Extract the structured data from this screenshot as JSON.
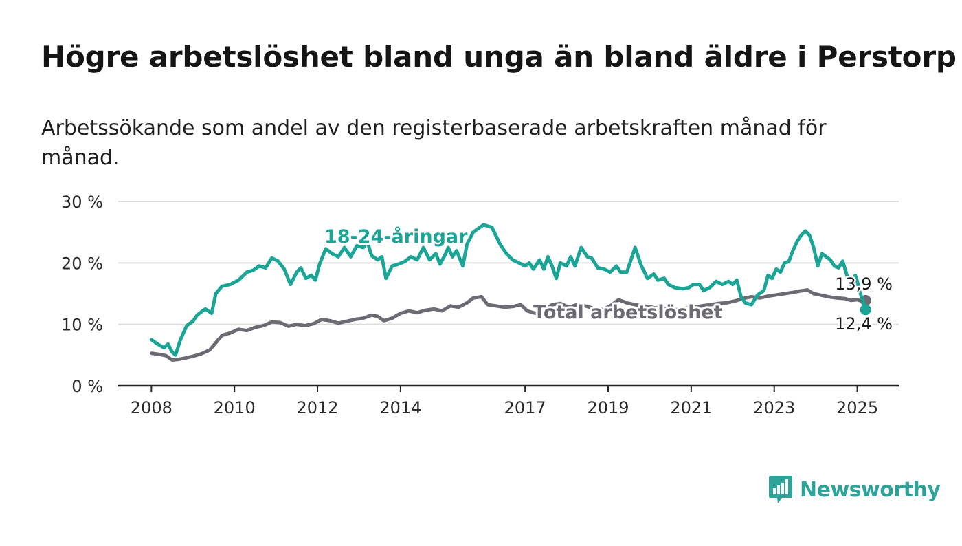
{
  "title": "Högre arbetslöshet bland unga än bland äldre i Perstorp",
  "subtitle": "Arbetssökande som andel av den registerbaserade arbetskraften månad för månad.",
  "logo": {
    "text": "Newsworthy",
    "icon": "bar-chart-speech-bubble-icon",
    "color": "#2ea39a"
  },
  "chart_data": {
    "type": "line",
    "ylim": [
      0,
      30
    ],
    "yticks": [
      0,
      10,
      20,
      30
    ],
    "ytick_labels": [
      "0 %",
      "10 %",
      "20 %",
      "30 %"
    ],
    "xlim": [
      2007.2,
      2026.0
    ],
    "xticks": [
      2008,
      2010,
      2012,
      2014,
      2017,
      2019,
      2021,
      2023,
      2025
    ],
    "xtick_labels": [
      "2008",
      "2010",
      "2012",
      "2014",
      "2017",
      "2019",
      "2021",
      "2023",
      "2025"
    ],
    "grid": true,
    "series": [
      {
        "name": "18-24-åringar",
        "color": "#1aa597",
        "end_label": "12,4 %",
        "points": [
          [
            2008.0,
            7.5
          ],
          [
            2008.15,
            6.8
          ],
          [
            2008.3,
            6.2
          ],
          [
            2008.4,
            6.8
          ],
          [
            2008.5,
            5.5
          ],
          [
            2008.58,
            5.0
          ],
          [
            2008.7,
            7.5
          ],
          [
            2008.85,
            9.8
          ],
          [
            2009.0,
            10.5
          ],
          [
            2009.1,
            11.5
          ],
          [
            2009.3,
            12.5
          ],
          [
            2009.45,
            11.8
          ],
          [
            2009.55,
            15.0
          ],
          [
            2009.7,
            16.2
          ],
          [
            2009.9,
            16.5
          ],
          [
            2010.1,
            17.2
          ],
          [
            2010.3,
            18.5
          ],
          [
            2010.45,
            18.8
          ],
          [
            2010.6,
            19.5
          ],
          [
            2010.75,
            19.2
          ],
          [
            2010.9,
            20.8
          ],
          [
            2011.05,
            20.3
          ],
          [
            2011.2,
            19.0
          ],
          [
            2011.35,
            16.5
          ],
          [
            2011.5,
            18.5
          ],
          [
            2011.6,
            19.2
          ],
          [
            2011.72,
            17.5
          ],
          [
            2011.85,
            18.0
          ],
          [
            2011.95,
            17.2
          ],
          [
            2012.05,
            19.8
          ],
          [
            2012.2,
            22.3
          ],
          [
            2012.35,
            21.5
          ],
          [
            2012.5,
            21.0
          ],
          [
            2012.65,
            22.5
          ],
          [
            2012.8,
            21.0
          ],
          [
            2012.95,
            22.8
          ],
          [
            2013.1,
            22.5
          ],
          [
            2013.2,
            23.5
          ],
          [
            2013.3,
            21.2
          ],
          [
            2013.45,
            20.5
          ],
          [
            2013.55,
            21.0
          ],
          [
            2013.65,
            17.5
          ],
          [
            2013.8,
            19.5
          ],
          [
            2013.95,
            19.8
          ],
          [
            2014.1,
            20.2
          ],
          [
            2014.25,
            21.0
          ],
          [
            2014.4,
            20.5
          ],
          [
            2014.55,
            22.5
          ],
          [
            2014.7,
            20.5
          ],
          [
            2014.85,
            21.5
          ],
          [
            2014.95,
            19.8
          ],
          [
            2015.05,
            21.0
          ],
          [
            2015.15,
            22.5
          ],
          [
            2015.25,
            21.0
          ],
          [
            2015.35,
            22.0
          ],
          [
            2015.5,
            19.5
          ],
          [
            2015.6,
            23.0
          ],
          [
            2015.75,
            25.0
          ],
          [
            2016.0,
            26.2
          ],
          [
            2016.2,
            25.8
          ],
          [
            2016.4,
            23.0
          ],
          [
            2016.55,
            21.5
          ],
          [
            2016.7,
            20.5
          ],
          [
            2016.85,
            20.0
          ],
          [
            2017.0,
            19.5
          ],
          [
            2017.1,
            20.0
          ],
          [
            2017.2,
            19.0
          ],
          [
            2017.35,
            20.5
          ],
          [
            2017.45,
            19.0
          ],
          [
            2017.55,
            21.0
          ],
          [
            2017.65,
            19.5
          ],
          [
            2017.75,
            17.5
          ],
          [
            2017.85,
            20.0
          ],
          [
            2018.0,
            19.5
          ],
          [
            2018.1,
            21.0
          ],
          [
            2018.2,
            19.5
          ],
          [
            2018.35,
            22.5
          ],
          [
            2018.5,
            21.0
          ],
          [
            2018.6,
            20.8
          ],
          [
            2018.75,
            19.2
          ],
          [
            2018.9,
            19.0
          ],
          [
            2019.05,
            18.5
          ],
          [
            2019.2,
            19.5
          ],
          [
            2019.3,
            18.5
          ],
          [
            2019.45,
            18.5
          ],
          [
            2019.65,
            22.5
          ],
          [
            2019.8,
            19.5
          ],
          [
            2019.95,
            17.5
          ],
          [
            2020.1,
            18.2
          ],
          [
            2020.2,
            17.2
          ],
          [
            2020.35,
            17.5
          ],
          [
            2020.45,
            16.5
          ],
          [
            2020.6,
            16.0
          ],
          [
            2020.8,
            15.8
          ],
          [
            2020.95,
            16.0
          ],
          [
            2021.05,
            16.5
          ],
          [
            2021.2,
            16.5
          ],
          [
            2021.3,
            15.5
          ],
          [
            2021.45,
            16.0
          ],
          [
            2021.6,
            17.0
          ],
          [
            2021.75,
            16.5
          ],
          [
            2021.9,
            17.0
          ],
          [
            2022.0,
            16.5
          ],
          [
            2022.1,
            17.2
          ],
          [
            2022.2,
            14.5
          ],
          [
            2022.3,
            13.5
          ],
          [
            2022.45,
            13.2
          ],
          [
            2022.6,
            14.8
          ],
          [
            2022.75,
            15.5
          ],
          [
            2022.85,
            18.0
          ],
          [
            2022.95,
            17.5
          ],
          [
            2023.05,
            19.0
          ],
          [
            2023.15,
            18.5
          ],
          [
            2023.25,
            20.0
          ],
          [
            2023.35,
            20.2
          ],
          [
            2023.45,
            22.0
          ],
          [
            2023.55,
            23.5
          ],
          [
            2023.65,
            24.5
          ],
          [
            2023.75,
            25.2
          ],
          [
            2023.85,
            24.5
          ],
          [
            2023.95,
            22.5
          ],
          [
            2024.05,
            19.5
          ],
          [
            2024.15,
            21.5
          ],
          [
            2024.25,
            21.0
          ],
          [
            2024.35,
            20.5
          ],
          [
            2024.45,
            19.5
          ],
          [
            2024.55,
            19.2
          ],
          [
            2024.65,
            20.3
          ],
          [
            2024.75,
            18.0
          ],
          [
            2024.85,
            16.5
          ],
          [
            2024.95,
            18.0
          ],
          [
            2025.0,
            17.0
          ],
          [
            2025.05,
            15.5
          ],
          [
            2025.1,
            14.5
          ],
          [
            2025.2,
            12.4
          ]
        ]
      },
      {
        "name": "Total arbetslöshet",
        "color": "#6b6b73",
        "end_label": "13,9 %",
        "points": [
          [
            2008.0,
            5.3
          ],
          [
            2008.2,
            5.1
          ],
          [
            2008.35,
            4.9
          ],
          [
            2008.5,
            4.2
          ],
          [
            2008.65,
            4.3
          ],
          [
            2008.8,
            4.5
          ],
          [
            2009.0,
            4.8
          ],
          [
            2009.2,
            5.2
          ],
          [
            2009.4,
            5.8
          ],
          [
            2009.55,
            7.0
          ],
          [
            2009.7,
            8.2
          ],
          [
            2009.9,
            8.6
          ],
          [
            2010.1,
            9.2
          ],
          [
            2010.3,
            9.0
          ],
          [
            2010.5,
            9.5
          ],
          [
            2010.7,
            9.8
          ],
          [
            2010.9,
            10.4
          ],
          [
            2011.1,
            10.3
          ],
          [
            2011.3,
            9.7
          ],
          [
            2011.5,
            10.0
          ],
          [
            2011.7,
            9.8
          ],
          [
            2011.9,
            10.1
          ],
          [
            2012.1,
            10.8
          ],
          [
            2012.3,
            10.6
          ],
          [
            2012.5,
            10.2
          ],
          [
            2012.7,
            10.5
          ],
          [
            2012.9,
            10.8
          ],
          [
            2013.1,
            11.0
          ],
          [
            2013.3,
            11.5
          ],
          [
            2013.45,
            11.3
          ],
          [
            2013.6,
            10.6
          ],
          [
            2013.8,
            11.0
          ],
          [
            2014.0,
            11.8
          ],
          [
            2014.2,
            12.2
          ],
          [
            2014.4,
            11.9
          ],
          [
            2014.6,
            12.3
          ],
          [
            2014.8,
            12.5
          ],
          [
            2015.0,
            12.2
          ],
          [
            2015.2,
            13.0
          ],
          [
            2015.4,
            12.8
          ],
          [
            2015.6,
            13.5
          ],
          [
            2015.75,
            14.3
          ],
          [
            2015.95,
            14.5
          ],
          [
            2016.1,
            13.2
          ],
          [
            2016.3,
            13.0
          ],
          [
            2016.5,
            12.8
          ],
          [
            2016.7,
            12.9
          ],
          [
            2016.9,
            13.2
          ],
          [
            2017.05,
            12.2
          ],
          [
            2017.25,
            11.8
          ],
          [
            2017.45,
            12.3
          ],
          [
            2017.65,
            13.2
          ],
          [
            2017.85,
            13.4
          ],
          [
            2018.05,
            12.8
          ],
          [
            2018.25,
            13.2
          ],
          [
            2018.45,
            13.0
          ],
          [
            2018.65,
            12.6
          ],
          [
            2018.85,
            12.4
          ],
          [
            2019.05,
            13.0
          ],
          [
            2019.25,
            14.0
          ],
          [
            2019.45,
            13.5
          ],
          [
            2019.65,
            13.2
          ],
          [
            2019.85,
            13.0
          ],
          [
            2020.05,
            12.8
          ],
          [
            2020.25,
            12.6
          ],
          [
            2020.45,
            12.5
          ],
          [
            2020.65,
            12.4
          ],
          [
            2020.85,
            12.6
          ],
          [
            2021.05,
            12.8
          ],
          [
            2021.25,
            13.0
          ],
          [
            2021.45,
            13.2
          ],
          [
            2021.65,
            13.4
          ],
          [
            2021.85,
            13.5
          ],
          [
            2022.05,
            13.8
          ],
          [
            2022.25,
            14.2
          ],
          [
            2022.45,
            14.5
          ],
          [
            2022.65,
            14.3
          ],
          [
            2022.85,
            14.6
          ],
          [
            2023.05,
            14.8
          ],
          [
            2023.25,
            15.0
          ],
          [
            2023.45,
            15.2
          ],
          [
            2023.6,
            15.4
          ],
          [
            2023.8,
            15.6
          ],
          [
            2023.95,
            15.0
          ],
          [
            2024.1,
            14.8
          ],
          [
            2024.3,
            14.5
          ],
          [
            2024.5,
            14.3
          ],
          [
            2024.7,
            14.2
          ],
          [
            2024.85,
            13.9
          ],
          [
            2025.0,
            14.0
          ],
          [
            2025.1,
            13.8
          ],
          [
            2025.2,
            13.9
          ]
        ]
      }
    ]
  }
}
